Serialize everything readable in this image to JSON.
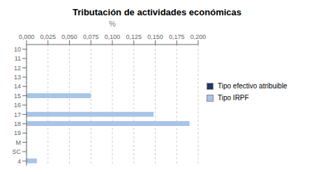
{
  "chart_data": {
    "type": "bar",
    "orientation": "horizontal",
    "title": "Tributación de actividades económicas",
    "xlabel": "%",
    "categories": [
      "10",
      "11",
      "12",
      "13",
      "14",
      "15",
      "16",
      "17",
      "18",
      "19",
      "M",
      "SC",
      "4"
    ],
    "series": [
      {
        "name": "Tipo IRPF",
        "color": "#a9c4e8",
        "values": [
          0,
          0,
          0,
          0,
          0,
          0.075,
          0,
          0.148,
          0.19,
          0,
          0,
          0,
          0.012
        ]
      },
      {
        "name": "Tipo efectivo atribuible",
        "color": "#1f3864",
        "values": [
          0,
          0,
          0,
          0,
          0,
          0,
          0,
          0,
          0,
          0,
          0,
          0,
          0
        ]
      }
    ],
    "xlim": [
      0,
      0.2
    ],
    "xticks": [
      {
        "value": 0,
        "label": "0,000"
      },
      {
        "value": 0.025,
        "label": "0,025"
      },
      {
        "value": 0.05,
        "label": "0,050"
      },
      {
        "value": 0.075,
        "label": "0,075"
      },
      {
        "value": 0.1,
        "label": "0,100"
      },
      {
        "value": 0.125,
        "label": "0,125"
      },
      {
        "value": 0.15,
        "label": "0,150"
      },
      {
        "value": 0.175,
        "label": "0,175"
      },
      {
        "value": 0.2,
        "label": "0,200"
      }
    ],
    "grid": true,
    "legend": "right"
  }
}
